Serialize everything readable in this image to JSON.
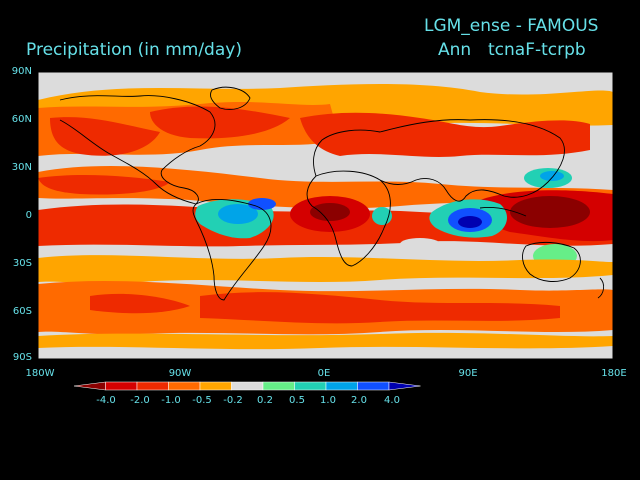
{
  "title": {
    "run": "LGM_ense - FAMOUS",
    "variable": "Precipitation (in mm/day)",
    "period": "Ann",
    "difference": "tcnaF-tcrpb"
  },
  "map": {
    "projection": "cylindrical-equidistant",
    "lon_range": [
      -180,
      180
    ],
    "lat_range": [
      -90,
      90
    ],
    "lat_labels": [
      "90N",
      "60N",
      "30N",
      "0",
      "30S",
      "60S",
      "90S"
    ],
    "lon_labels": [
      "180W",
      "90W",
      "0E",
      "90E",
      "180E"
    ],
    "background_color": "#dcdcdc",
    "coastline_color": "#000000"
  },
  "colorbar": {
    "tick_labels": [
      "-4.0",
      "-2.0",
      "-1.0",
      "-0.5",
      "-0.2",
      "0.2",
      "0.5",
      "1.0",
      "2.0",
      "4.0"
    ],
    "colors": [
      "#8b0000",
      "#d40000",
      "#ee2a00",
      "#ff6a00",
      "#ffa500",
      "#dcdcdc",
      "#66ee88",
      "#22d0b4",
      "#00a4e8",
      "#1050ff",
      "#0000b0"
    ]
  },
  "text_color": "#66e0e8"
}
